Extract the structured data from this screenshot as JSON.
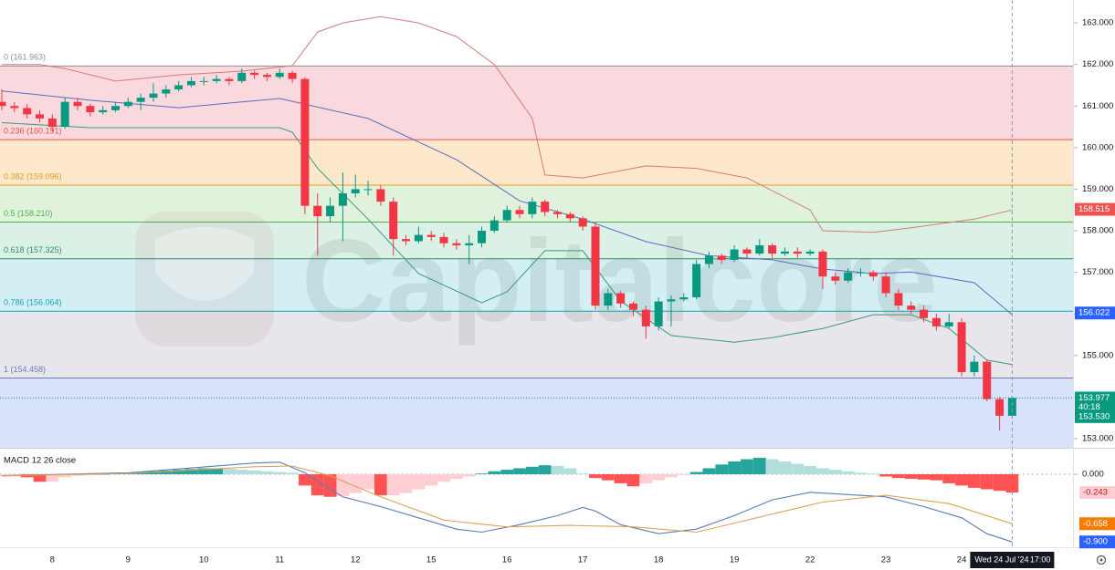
{
  "chart_data": [
    {
      "type": "candlestick",
      "watermark": "Capitalcore",
      "categories": [
        null,
        null,
        null,
        null,
        "8",
        null,
        null,
        null,
        null,
        null,
        "9",
        null,
        null,
        null,
        null,
        null,
        "10",
        null,
        null,
        null,
        null,
        null,
        "11",
        null,
        null,
        null,
        null,
        null,
        "12",
        null,
        null,
        null,
        null,
        null,
        "15",
        null,
        null,
        null,
        null,
        null,
        "16",
        null,
        null,
        null,
        null,
        null,
        "17",
        null,
        null,
        null,
        null,
        null,
        "18",
        null,
        null,
        null,
        null,
        null,
        "19",
        null,
        null,
        null,
        null,
        null,
        "22",
        null,
        null,
        null,
        null,
        null,
        "23",
        null,
        null,
        null,
        null,
        null,
        "24",
        null,
        null,
        null,
        null
      ],
      "open": [
        161.1,
        161.0,
        160.95,
        160.8,
        160.7,
        160.5,
        161.1,
        161.0,
        160.85,
        160.9,
        161.0,
        161.1,
        161.2,
        161.3,
        161.4,
        161.5,
        161.6,
        161.6,
        161.65,
        161.6,
        161.8,
        161.75,
        161.7,
        161.8,
        161.65,
        158.6,
        158.35,
        158.6,
        158.9,
        159.0,
        159.0,
        158.7,
        157.8,
        157.75,
        157.9,
        157.85,
        157.7,
        157.65,
        157.7,
        158.0,
        158.25,
        158.5,
        158.4,
        158.7,
        158.45,
        158.4,
        158.3,
        158.1,
        156.2,
        156.5,
        156.25,
        156.1,
        155.7,
        156.3,
        156.35,
        156.4,
        157.2,
        157.4,
        157.3,
        157.55,
        157.45,
        157.65,
        157.45,
        157.5,
        157.45,
        157.5,
        156.9,
        156.8,
        157.0,
        157.0,
        156.9,
        156.5,
        156.2,
        156.1,
        155.9,
        155.7,
        155.8,
        154.6,
        154.85,
        153.95,
        153.55
      ],
      "high": [
        161.4,
        161.1,
        161.05,
        160.9,
        160.8,
        161.2,
        161.2,
        161.05,
        161.0,
        161.1,
        161.2,
        161.3,
        161.55,
        161.5,
        161.6,
        161.7,
        161.7,
        161.75,
        161.7,
        161.9,
        161.85,
        161.8,
        161.9,
        161.85,
        161.7,
        158.9,
        158.8,
        159.4,
        159.35,
        159.2,
        159.1,
        158.8,
        157.9,
        158.1,
        158.0,
        157.95,
        157.8,
        157.9,
        158.1,
        158.35,
        158.6,
        158.6,
        158.8,
        158.75,
        158.5,
        158.45,
        158.35,
        158.2,
        156.6,
        156.55,
        156.3,
        156.2,
        156.4,
        156.45,
        156.5,
        157.3,
        157.5,
        157.45,
        157.65,
        157.6,
        157.8,
        157.7,
        157.6,
        157.6,
        157.55,
        157.55,
        157.0,
        157.1,
        157.1,
        157.05,
        157.0,
        156.6,
        156.3,
        156.2,
        156.0,
        156.0,
        155.9,
        155.0,
        154.9,
        154.0,
        154.0
      ],
      "low": [
        160.9,
        160.85,
        160.7,
        160.6,
        160.4,
        160.45,
        160.9,
        160.75,
        160.8,
        160.85,
        160.95,
        160.9,
        161.1,
        161.2,
        161.35,
        161.45,
        161.5,
        161.55,
        161.5,
        161.55,
        161.65,
        161.6,
        161.65,
        161.55,
        158.4,
        157.4,
        158.2,
        157.75,
        158.8,
        158.85,
        158.6,
        157.4,
        157.65,
        157.7,
        157.75,
        157.6,
        157.55,
        157.2,
        157.6,
        157.95,
        158.2,
        158.3,
        158.3,
        158.35,
        158.3,
        158.2,
        158.0,
        156.1,
        156.1,
        156.15,
        155.95,
        155.4,
        155.6,
        155.7,
        156.3,
        156.35,
        157.1,
        157.2,
        157.25,
        157.35,
        157.4,
        157.35,
        157.4,
        157.35,
        157.4,
        156.6,
        156.7,
        156.75,
        156.9,
        156.8,
        156.4,
        156.1,
        156.0,
        155.8,
        155.6,
        155.65,
        154.5,
        154.5,
        153.9,
        153.2,
        153.5
      ],
      "close": [
        161.0,
        160.95,
        160.8,
        160.7,
        160.5,
        161.1,
        161.0,
        160.85,
        160.9,
        161.0,
        161.1,
        161.2,
        161.3,
        161.4,
        161.5,
        161.6,
        161.6,
        161.65,
        161.6,
        161.8,
        161.75,
        161.7,
        161.8,
        161.65,
        158.6,
        158.35,
        158.6,
        158.9,
        159.0,
        159.0,
        158.7,
        157.8,
        157.75,
        157.9,
        157.85,
        157.7,
        157.65,
        157.7,
        158.0,
        158.25,
        158.5,
        158.4,
        158.7,
        158.45,
        158.4,
        158.3,
        158.1,
        156.2,
        156.5,
        156.25,
        156.1,
        155.7,
        156.3,
        156.35,
        156.4,
        157.2,
        157.4,
        157.3,
        157.55,
        157.45,
        157.65,
        157.45,
        157.5,
        157.45,
        157.5,
        156.9,
        156.8,
        157.0,
        157.0,
        156.9,
        156.5,
        156.2,
        156.1,
        155.9,
        155.7,
        155.8,
        154.6,
        154.85,
        153.95,
        153.55,
        153.98
      ],
      "up_color": "#089981",
      "down_color": "#f23645",
      "ylim": [
        152.78,
        163.55
      ],
      "yticks": [
        {
          "value": 153,
          "label": "153.000"
        },
        {
          "value": 154,
          "label": "154.000"
        },
        {
          "value": 155,
          "label": "155.000"
        },
        {
          "value": 156,
          "label": "156.000"
        },
        {
          "value": 157,
          "label": "157.000"
        },
        {
          "value": 158,
          "label": "158.000"
        },
        {
          "value": 159,
          "label": "159.000"
        },
        {
          "value": 160,
          "label": "160.000"
        },
        {
          "value": 161,
          "label": "161.000"
        },
        {
          "value": 162,
          "label": "162.000"
        },
        {
          "value": 163,
          "label": "163.000"
        }
      ],
      "grid": false,
      "fib_levels": [
        {
          "ratio": 0,
          "price": 161.963,
          "label": "0 (161.963)",
          "color": "#8a8f9c",
          "fill": "#f9d9de"
        },
        {
          "ratio": 0.236,
          "price": 160.191,
          "label": "0.236 (160.191)",
          "color": "#e5544b",
          "fill": "#fde8cc"
        },
        {
          "ratio": 0.382,
          "price": 159.096,
          "label": "0.382 (159.096)",
          "color": "#e89b22",
          "fill": "#e0f2dc"
        },
        {
          "ratio": 0.5,
          "price": 158.21,
          "label": "0.5 (158.210)",
          "color": "#4caf50",
          "fill": "#dcf1e6"
        },
        {
          "ratio": 0.618,
          "price": 157.325,
          "label": "0.618 (157.325)",
          "color": "#2e8b6a",
          "fill": "#d3eff3"
        },
        {
          "ratio": 0.786,
          "price": 156.064,
          "label": "0.786 (156.064)",
          "color": "#17a2b8",
          "fill": "#e6e6ec"
        },
        {
          "ratio": 1,
          "price": 154.458,
          "label": "1 (154.458)",
          "color": "#6b7cb3",
          "fill": "#d8e3fb"
        }
      ],
      "bands": [
        {
          "color": "#d47a7a",
          "x": [
            0,
            3,
            5,
            9,
            14,
            19,
            23,
            25,
            27,
            30,
            33,
            36,
            39,
            42,
            43,
            46,
            51,
            55,
            59,
            64,
            65,
            69,
            72,
            77,
            80
          ],
          "values": [
            162.0,
            162.0,
            161.9,
            161.6,
            161.75,
            161.84,
            161.97,
            162.78,
            163.0,
            163.15,
            163.0,
            162.67,
            162.0,
            160.7,
            159.34,
            159.27,
            159.56,
            159.5,
            159.27,
            158.5,
            158.0,
            157.96,
            158.07,
            158.28,
            158.5
          ]
        },
        {
          "color": "#5c6bc0",
          "x": [
            0,
            7,
            14,
            22,
            29,
            36,
            41,
            46,
            51,
            56,
            61,
            65,
            69,
            72,
            77,
            80
          ],
          "values": [
            161.36,
            161.14,
            160.96,
            161.18,
            160.7,
            159.71,
            158.72,
            158.28,
            157.74,
            157.4,
            157.3,
            157.08,
            156.97,
            157.01,
            156.75,
            155.98
          ]
        },
        {
          "color": "#3a9a7a",
          "x": [
            0,
            7,
            14,
            22,
            23,
            25,
            29,
            33,
            38,
            40,
            43,
            46,
            49,
            53,
            58,
            61,
            65,
            69,
            72,
            75,
            78,
            80
          ],
          "values": [
            160.6,
            160.48,
            160.48,
            160.48,
            160.37,
            159.5,
            158.28,
            156.97,
            156.27,
            156.53,
            157.52,
            157.52,
            156.31,
            155.48,
            155.32,
            155.43,
            155.65,
            155.98,
            155.98,
            155.65,
            154.89,
            154.78
          ]
        }
      ],
      "price_tags": [
        {
          "value": 158.515,
          "label": "158.515",
          "color": "#ef5350"
        },
        {
          "value": 156.022,
          "label": "156.022",
          "color": "#2962ff"
        },
        {
          "value": 153.977,
          "label": "153.977",
          "color": "#089981"
        },
        {
          "value": 153.53,
          "label": "153.530",
          "color": "#089981"
        }
      ],
      "countdown": "40:18",
      "crosshair": {
        "date": "Wed 24 Jul '24",
        "time": "17:00"
      }
    },
    {
      "type": "macd",
      "title": "MACD 12 26 close",
      "ylim": [
        -0.97,
        0.34
      ],
      "yticks": [
        {
          "value": 0,
          "label": "0.000"
        }
      ],
      "histogram": [
        -0.03,
        -0.03,
        -0.04,
        -0.1,
        -0.1,
        -0.04,
        -0.02,
        -0.01,
        0.0,
        0.01,
        0.02,
        0.03,
        0.04,
        0.05,
        0.06,
        0.07,
        0.08,
        0.08,
        0.07,
        0.06,
        0.05,
        0.04,
        0.03,
        0.02,
        -0.15,
        -0.28,
        -0.3,
        -0.29,
        -0.25,
        -0.2,
        -0.28,
        -0.28,
        -0.25,
        -0.2,
        -0.15,
        -0.1,
        -0.06,
        -0.03,
        0.01,
        0.04,
        0.06,
        0.08,
        0.1,
        0.12,
        0.11,
        0.08,
        0.01,
        -0.05,
        -0.08,
        -0.12,
        -0.16,
        -0.12,
        -0.08,
        -0.04,
        -0.01,
        0.03,
        0.08,
        0.13,
        0.17,
        0.2,
        0.22,
        0.2,
        0.17,
        0.14,
        0.11,
        0.08,
        0.06,
        0.04,
        0.02,
        0.01,
        -0.03,
        -0.05,
        -0.06,
        -0.07,
        -0.08,
        -0.12,
        -0.15,
        -0.18,
        -0.2,
        -0.22,
        -0.243
      ],
      "histogram_colors": {
        "up_strong": "#26a69a",
        "up_weak": "#b2dfdb",
        "down_weak": "#ffcdd2",
        "down_strong": "#ff5252"
      },
      "macd": {
        "color": "#5b7bb4",
        "x": [
          0,
          10,
          20,
          22,
          24,
          27,
          30,
          33,
          36,
          38,
          41,
          44,
          46,
          47,
          49,
          52,
          55,
          58,
          61,
          64,
          67,
          70,
          73,
          76,
          78,
          80
        ],
        "values": [
          -0.02,
          0.02,
          0.15,
          0.16,
          0.02,
          -0.3,
          -0.43,
          -0.58,
          -0.73,
          -0.77,
          -0.67,
          -0.55,
          -0.44,
          -0.49,
          -0.67,
          -0.79,
          -0.73,
          -0.55,
          -0.34,
          -0.24,
          -0.27,
          -0.3,
          -0.43,
          -0.58,
          -0.79,
          -0.9
        ]
      },
      "signal": {
        "color": "#d9a25a",
        "x": [
          0,
          10,
          20,
          23,
          26,
          30,
          35,
          40,
          45,
          50,
          55,
          60,
          65,
          70,
          75,
          80
        ],
        "values": [
          -0.02,
          0.01,
          0.1,
          0.11,
          -0.02,
          -0.3,
          -0.61,
          -0.7,
          -0.68,
          -0.7,
          -0.77,
          -0.57,
          -0.37,
          -0.28,
          -0.39,
          -0.658
        ]
      },
      "tags": [
        {
          "value": -0.243,
          "label": "-0.243",
          "color": "#ffcdd2",
          "text_color": "#b71c1c"
        },
        {
          "value": -0.658,
          "label": "-0.658",
          "color": "#f57c00",
          "text_color": "#ffffff"
        },
        {
          "value": -0.9,
          "label": "-0.900",
          "color": "#2962ff",
          "text_color": "#ffffff"
        }
      ]
    }
  ]
}
